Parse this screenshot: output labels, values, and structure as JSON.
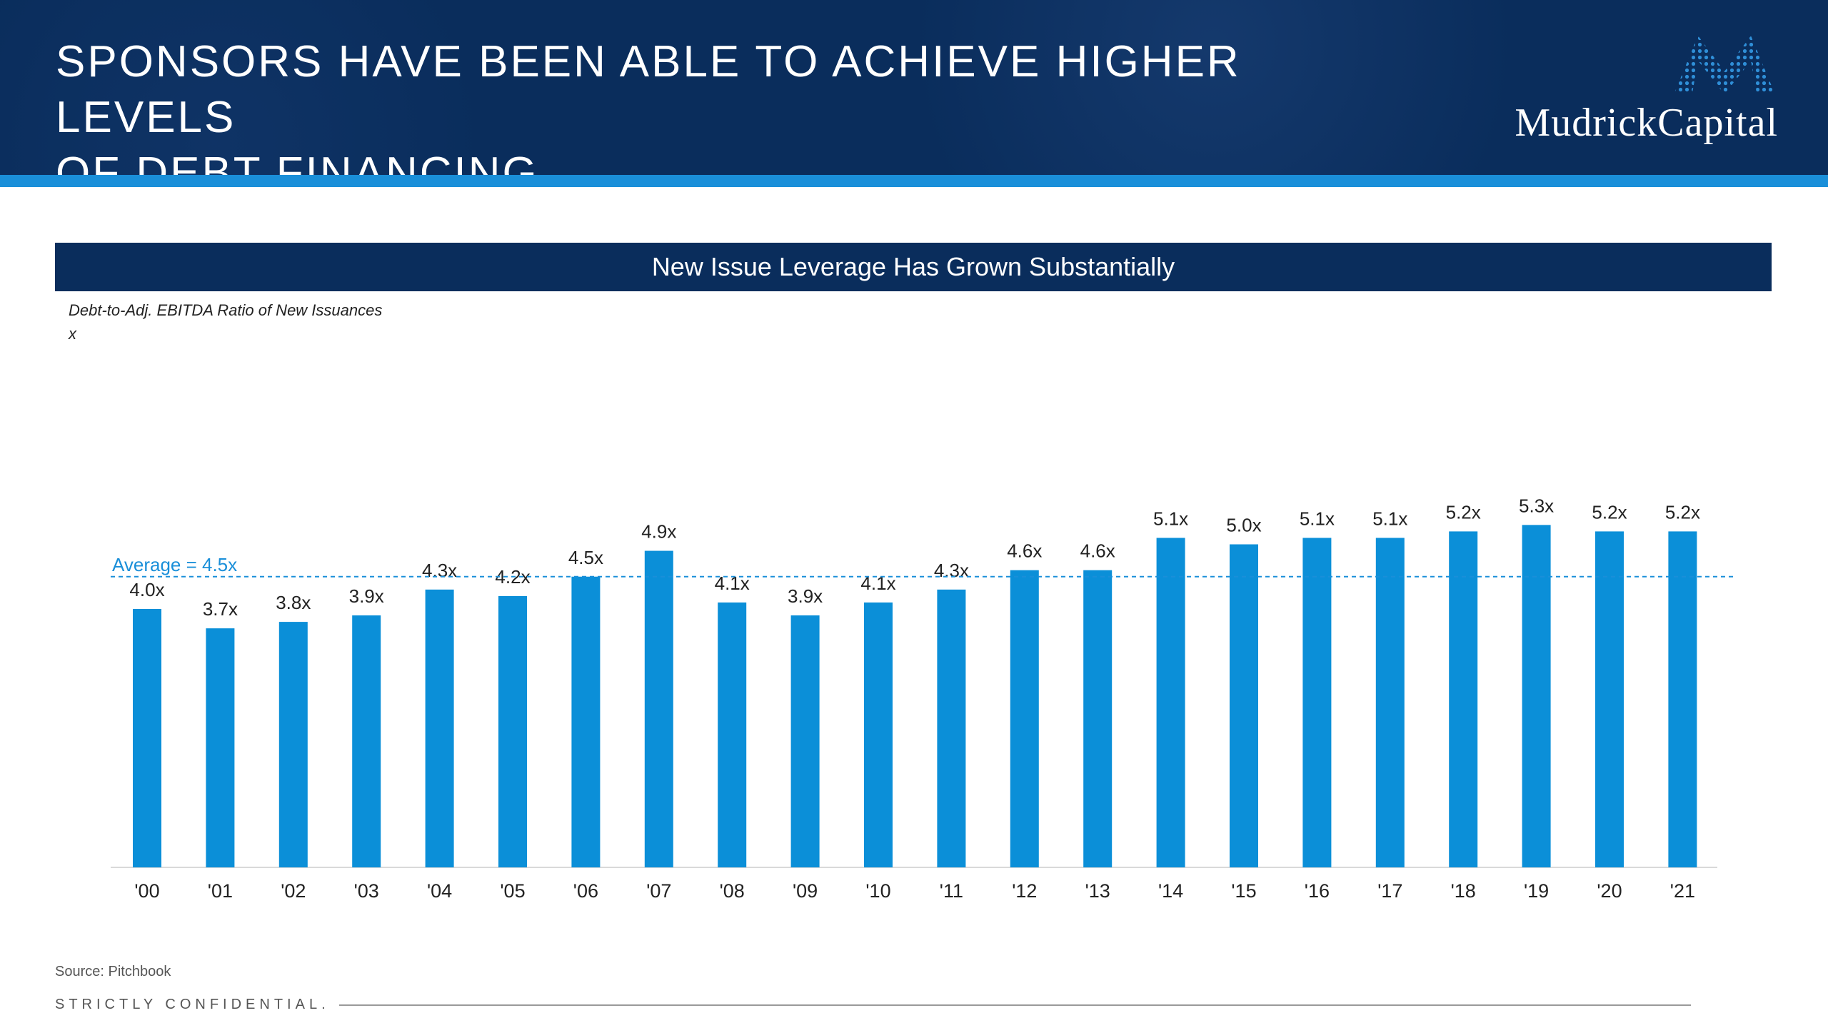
{
  "header": {
    "title_line1": "SPONSORS HAVE BEEN ABLE TO ACHIEVE HIGHER LEVELS",
    "title_line2": "OF DEBT FINANCING",
    "logo_text": "MudrickCapital"
  },
  "banner": {
    "title": "New Issue Leverage Has Grown Substantially"
  },
  "chart_meta": {
    "subtitle": "Debt-to-Adj. EBITDA Ratio of New Issuances",
    "unit": "x"
  },
  "chart_data": {
    "type": "bar",
    "categories": [
      "'00",
      "'01",
      "'02",
      "'03",
      "'04",
      "'05",
      "'06",
      "'07",
      "'08",
      "'09",
      "'10",
      "'11",
      "'12",
      "'13",
      "'14",
      "'15",
      "'16",
      "'17",
      "'18",
      "'19",
      "'20",
      "'21"
    ],
    "values": [
      4.0,
      3.7,
      3.8,
      3.9,
      4.3,
      4.2,
      4.5,
      4.9,
      4.1,
      3.9,
      4.1,
      4.3,
      4.6,
      4.6,
      5.1,
      5.0,
      5.1,
      5.1,
      5.2,
      5.3,
      5.2,
      5.2
    ],
    "labels": [
      "4.0x",
      "3.7x",
      "3.8x",
      "3.9x",
      "4.3x",
      "4.2x",
      "4.5x",
      "4.9x",
      "4.1x",
      "3.9x",
      "4.1x",
      "4.3x",
      "4.6x",
      "4.6x",
      "5.1x",
      "5.0x",
      "5.1x",
      "5.1x",
      "5.2x",
      "5.3x",
      "5.2x",
      "5.2x"
    ],
    "average": {
      "value": 4.5,
      "label": "Average = 4.5x"
    },
    "ylim": [
      0,
      5.5
    ],
    "grid": false,
    "bar_color": "#0b8fd8",
    "average_color": "#1a8fd9"
  },
  "footer": {
    "source": "Source: Pitchbook",
    "confidential": "STRICTLY CONFIDENTIAL."
  },
  "colors": {
    "header_bg": "#0a2d5c",
    "accent": "#1a8fd9"
  }
}
